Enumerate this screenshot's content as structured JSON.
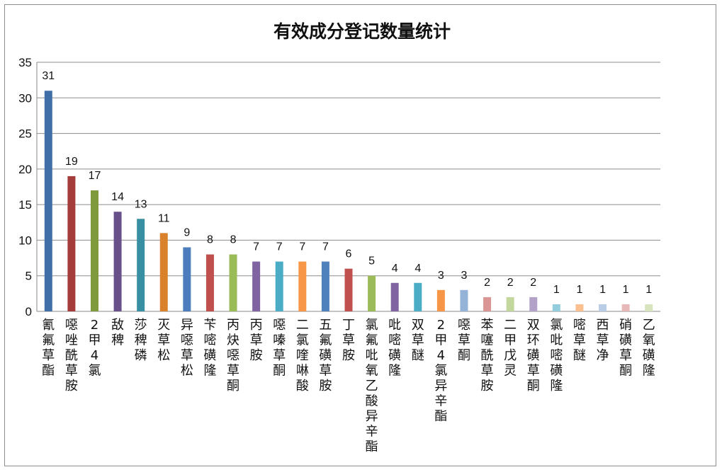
{
  "chart_data": {
    "type": "bar",
    "title": "有效成分登记数量统计",
    "xlabel": "",
    "ylabel": "",
    "ylim": [
      0,
      35
    ],
    "yticks": [
      0,
      5,
      10,
      15,
      20,
      25,
      30,
      35
    ],
    "grid": true,
    "legend": "none",
    "data_labels": true,
    "categories": [
      "氰氟草酯",
      "噁唑酰草胺",
      "2甲4氯",
      "敌稗",
      "莎稗磷",
      "灭草松",
      "异噁草松",
      "苄嘧磺隆",
      "丙炔噁草酮",
      "丙草胺",
      "噁嗪草酮",
      "二氯喹啉酸",
      "五氟磺草胺",
      "丁草胺",
      "氯氟吡氧乙酸异辛酯",
      "吡嘧磺隆",
      "双草醚",
      "2甲4氯异辛酯",
      "噁草酮",
      "苯噻酰草胺",
      "二甲戊灵",
      "双环磺草酮",
      "氯吡嘧磺隆",
      "嘧草醚",
      "西草净",
      "硝磺草酮",
      "乙氧磺隆"
    ],
    "values": [
      31,
      19,
      17,
      14,
      13,
      11,
      9,
      8,
      8,
      7,
      7,
      7,
      7,
      6,
      5,
      4,
      4,
      3,
      3,
      2,
      2,
      2,
      1,
      1,
      1,
      1,
      1
    ],
    "colors": [
      "#3f6fa6",
      "#a33c3a",
      "#7f9a3d",
      "#68508b",
      "#378fa2",
      "#d9822b",
      "#4c7ebd",
      "#c0504d",
      "#9bbb59",
      "#8064a2",
      "#4bacc6",
      "#f79646",
      "#4f81bd",
      "#c0504d",
      "#9bbb59",
      "#8064a2",
      "#4bacc6",
      "#f79646",
      "#95b3d7",
      "#d99694",
      "#c3d69b",
      "#b2a2c7",
      "#93cddd",
      "#fac08f",
      "#b9cde5",
      "#e6b9b8",
      "#d7e4bd"
    ]
  }
}
